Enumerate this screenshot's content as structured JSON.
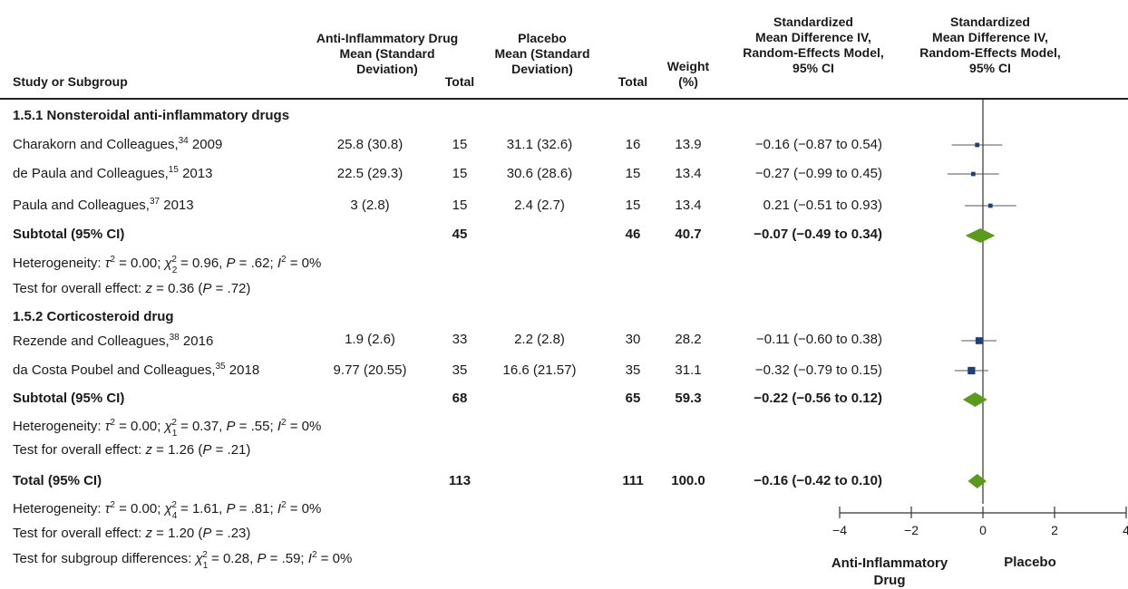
{
  "chart_data": {
    "type": "forest",
    "columns": {
      "study": "Study or Subgroup",
      "drug_mean": [
        "Anti-Inflammatory Drug",
        "Mean (Standard",
        "Deviation)"
      ],
      "drug_total": "Total",
      "placebo_mean": [
        "Placebo",
        "Mean (Standard",
        "Deviation)"
      ],
      "placebo_total": "Total",
      "weight": [
        "Weight",
        "(%)"
      ],
      "smd": [
        "Standardized",
        "Mean Difference IV,",
        "Random-Effects Model,",
        "95% CI"
      ],
      "plot": [
        "Standardized",
        "Mean Difference IV,",
        "Random-Effects Model,",
        "95% CI"
      ]
    },
    "groups": [
      {
        "title": "1.5.1 Nonsteroidal anti-inflammatory drugs",
        "studies": [
          {
            "name": "Charakorn and Colleagues,",
            "ref": "34",
            "year": " 2009",
            "drug_mean": "25.8 (30.8)",
            "drug_total": "15",
            "placebo_mean": "31.1 (32.6)",
            "placebo_total": "16",
            "weight": "13.9",
            "ci_text": "−0.16 (−0.87 to 0.54)",
            "est": -0.16,
            "lo": -0.87,
            "hi": 0.54
          },
          {
            "name": "de Paula and Colleagues,",
            "ref": "15",
            "year": " 2013",
            "drug_mean": "22.5 (29.3)",
            "drug_total": "15",
            "placebo_mean": "30.6 (28.6)",
            "placebo_total": "15",
            "weight": "13.4",
            "ci_text": "−0.27 (−0.99 to 0.45)",
            "est": -0.27,
            "lo": -0.99,
            "hi": 0.45
          },
          {
            "name": "Paula and Colleagues,",
            "ref": "37",
            "year": " 2013",
            "drug_mean": "3 (2.8)",
            "drug_total": "15",
            "placebo_mean": "2.4 (2.7)",
            "placebo_total": "15",
            "weight": "13.4",
            "ci_text": "0.21 (−0.51 to 0.93)",
            "est": 0.21,
            "lo": -0.51,
            "hi": 0.93
          }
        ],
        "subtotal": {
          "label": "Subtotal (95% CI)",
          "drug_total": "45",
          "placebo_total": "46",
          "weight": "40.7",
          "ci_text": "−0.07 (−0.49 to 0.34)",
          "est": -0.07,
          "lo": -0.49,
          "hi": 0.34
        },
        "heterogeneity": {
          "tau_val": " = 0.00; ",
          "chi_sub": "2",
          "chi_val": " = 0.96, ",
          "p_val": " = .62; ",
          "i_val": " = 0%"
        },
        "overall": {
          "z_val": " = 0.36 (",
          "p_val": " = .72)"
        }
      },
      {
        "title": "1.5.2 Corticosteroid drug",
        "studies": [
          {
            "name": "Rezende and Colleagues,",
            "ref": "38",
            "year": " 2016",
            "drug_mean": "1.9 (2.6)",
            "drug_total": "33",
            "placebo_mean": "2.2 (2.8)",
            "placebo_total": "30",
            "weight": "28.2",
            "ci_text": "−0.11 (−0.60 to 0.38)",
            "est": -0.11,
            "lo": -0.6,
            "hi": 0.38
          },
          {
            "name": "da Costa Poubel and Colleagues,",
            "ref": "35",
            "year": " 2018",
            "drug_mean": "9.77 (20.55)",
            "drug_total": "35",
            "placebo_mean": "16.6 (21.57)",
            "placebo_total": "35",
            "weight": "31.1",
            "ci_text": "−0.32 (−0.79 to 0.15)",
            "est": -0.32,
            "lo": -0.79,
            "hi": 0.15
          }
        ],
        "subtotal": {
          "label": "Subtotal (95% CI)",
          "drug_total": "68",
          "placebo_total": "65",
          "weight": "59.3",
          "ci_text": "−0.22 (−0.56 to 0.12)",
          "est": -0.22,
          "lo": -0.56,
          "hi": 0.12
        },
        "heterogeneity": {
          "tau_val": " = 0.00; ",
          "chi_sub": "1",
          "chi_val": " = 0.37, ",
          "p_val": " = .55; ",
          "i_val": " = 0%"
        },
        "overall": {
          "z_val": " = 1.26 (",
          "p_val": " = .21)"
        }
      }
    ],
    "total": {
      "label": "Total (95% CI)",
      "drug_total": "113",
      "placebo_total": "111",
      "weight": "100.0",
      "ci_text": "−0.16 (−0.42 to 0.10)",
      "est": -0.16,
      "lo": -0.42,
      "hi": 0.1,
      "heterogeneity": {
        "tau_val": " = 0.00; ",
        "chi_sub": "4",
        "chi_val": " = 1.61, ",
        "p_val": " = .81; ",
        "i_val": " = 0%"
      },
      "overall": {
        "z_val": " = 1.20 (",
        "p_val": " = .23)"
      },
      "subgroup": {
        "chi_sub": "1",
        "chi_val": " = 0.28, ",
        "p_val": " = .59; ",
        "i_val": " = 0%"
      }
    },
    "text": {
      "heterogeneity": "Heterogeneity: ",
      "tau": "τ",
      "chi": "χ",
      "sup2": "2",
      "p": "P",
      "i": "I",
      "overall": "Test for overall effect: ",
      "z": "z",
      "subgroup": "Test for subgroup differences: "
    },
    "axis": {
      "xlim": [
        -4,
        4
      ],
      "ticks": [
        -4,
        -2,
        0,
        2,
        4
      ],
      "tick_labels": [
        "−4",
        "−2",
        "0",
        "2",
        "4"
      ]
    },
    "favours_left": [
      "Anti-Inflammatory",
      "Drug"
    ],
    "favours_right": "Placebo",
    "colors": {
      "study_marker": "#1f3f7a",
      "diamond": "#5c9a1e",
      "line": "#333333"
    }
  }
}
